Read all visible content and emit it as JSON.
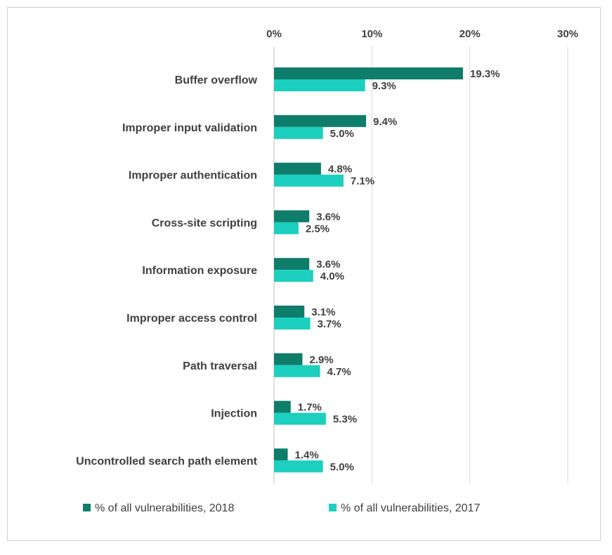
{
  "chart_data": {
    "type": "bar",
    "orientation": "horizontal",
    "categories": [
      "Buffer overflow",
      "Improper input validation",
      "Improper authentication",
      "Cross-site scripting",
      "Information exposure",
      "Improper access control",
      "Path traversal",
      "Injection",
      "Uncontrolled search path element"
    ],
    "series": [
      {
        "name": "% of all vulnerabilities, 2018",
        "color": "#0e7d6a",
        "values": [
          19.3,
          9.4,
          4.8,
          3.6,
          3.6,
          3.1,
          2.9,
          1.7,
          1.4
        ],
        "labels": [
          "19.3%",
          "9.4%",
          "4.8%",
          "3.6%",
          "3.6%",
          "3.1%",
          "2.9%",
          "1.7%",
          "1.4%"
        ]
      },
      {
        "name": "% of all vulnerabilities, 2017",
        "color": "#1ccfbf",
        "values": [
          9.3,
          5.0,
          7.1,
          2.5,
          4.0,
          3.7,
          4.7,
          5.3,
          5.0
        ],
        "labels": [
          "9.3%",
          "5.0%",
          "7.1%",
          "2.5%",
          "4.0%",
          "3.7%",
          "4.7%",
          "5.3%",
          "5.0%"
        ]
      }
    ],
    "xlim": [
      0,
      30
    ],
    "ticks": [
      0,
      10,
      20,
      30
    ],
    "tick_labels": [
      "0%",
      "10%",
      "20%",
      "30%"
    ],
    "xaxis_position": "top",
    "grid": true,
    "legend_position": "bottom"
  }
}
